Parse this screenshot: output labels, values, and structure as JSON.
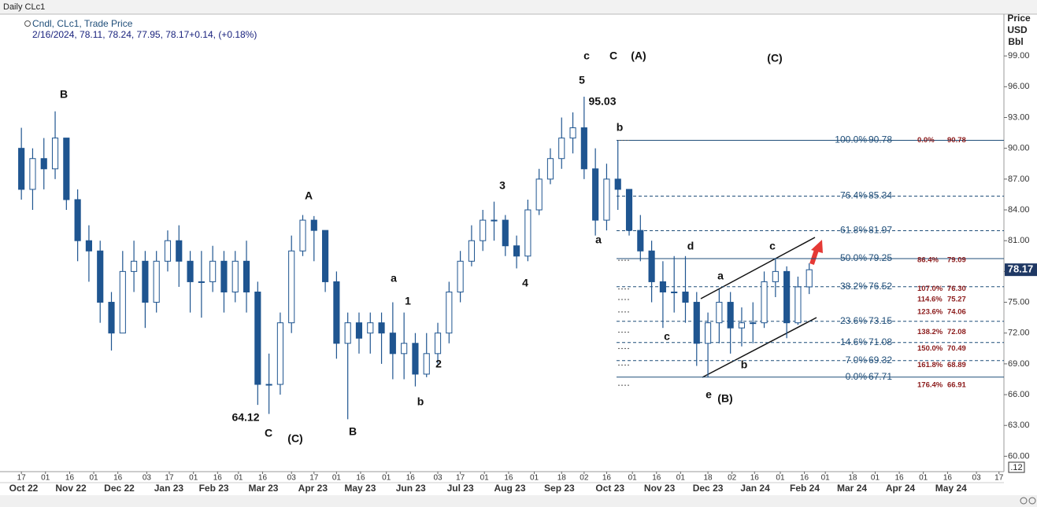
{
  "chart_data": {
    "type": "candlestick",
    "header": "Daily CLc1",
    "legend_title": "Cndl, CLc1, Trade Price",
    "legend_values": "2/16/2024, 78.11, 78.24, 77.95, 78.17+0.14, (+0.18%)",
    "axis_label": [
      "Price",
      "USD",
      "Bbl"
    ],
    "last_price": 78.17,
    "corner_label": ".12",
    "color": "#1f5590",
    "candles": {
      "open": [
        90,
        86,
        89,
        88,
        91,
        85,
        81,
        80,
        75,
        72,
        78,
        79,
        75,
        79,
        81,
        79,
        77,
        77,
        79,
        76,
        79,
        76,
        67,
        67,
        73,
        80,
        83,
        82,
        77,
        71,
        73,
        72,
        73,
        72,
        70,
        71,
        68,
        70,
        72,
        76,
        79,
        81,
        83,
        83,
        80.5,
        79.5,
        84,
        87,
        89,
        91,
        92,
        88,
        83,
        87,
        86,
        82,
        80,
        77,
        76,
        76,
        75,
        71,
        73,
        75,
        72.5,
        73,
        73,
        77,
        78,
        73,
        76.5
      ],
      "high": [
        92,
        90,
        91,
        93.6,
        91,
        86,
        82.5,
        81,
        76,
        80,
        81,
        80,
        80,
        82,
        82.5,
        80,
        80,
        80.5,
        80,
        80,
        81,
        77,
        70,
        74,
        81.5,
        83.5,
        83.4,
        82,
        78,
        74,
        74,
        74,
        74,
        75,
        74,
        72,
        72,
        73,
        77,
        80,
        82.5,
        84,
        84.8,
        83.5,
        81.5,
        85,
        88,
        90,
        93,
        93.5,
        95.03,
        90,
        88.5,
        90.78,
        86,
        83.5,
        81,
        79,
        79.5,
        79.5,
        76,
        74,
        76.3,
        76,
        74.5,
        75,
        78,
        79.3,
        78.5,
        77.5,
        78.8
      ],
      "low": [
        85,
        84,
        86,
        87,
        84,
        79,
        77,
        73,
        70.3,
        72,
        76,
        72.5,
        74,
        78,
        76.5,
        74,
        73.5,
        76,
        74,
        75,
        74,
        65,
        64.12,
        66,
        72,
        79.5,
        79,
        76,
        69.5,
        63.6,
        70,
        70,
        69,
        67.5,
        67.5,
        66.8,
        67.7,
        69,
        71,
        75,
        78.5,
        80,
        81,
        79.5,
        78.3,
        79,
        83.5,
        86.5,
        88,
        89.5,
        87,
        81.5,
        82,
        84,
        81.5,
        79,
        75,
        72.5,
        74,
        73,
        68.8,
        67.71,
        71,
        70,
        70.7,
        71,
        72.5,
        75.5,
        71.5,
        72.8,
        75.8
      ],
      "close": [
        86,
        89,
        88,
        91,
        85,
        81,
        80,
        75,
        72,
        78,
        79,
        75,
        79,
        81,
        79,
        77,
        77,
        79,
        76,
        79,
        76,
        67,
        67,
        73,
        80,
        83,
        82,
        77,
        71,
        73,
        71.5,
        73,
        72,
        70,
        71,
        68,
        70,
        72,
        76,
        79,
        81,
        83,
        83,
        80.5,
        79.5,
        84,
        87,
        89,
        91,
        92,
        88,
        83,
        87,
        86,
        82,
        80,
        77,
        76,
        76,
        75,
        71,
        73,
        75,
        72.5,
        73,
        73,
        77,
        78,
        73,
        76.5,
        78.17
      ]
    },
    "xlim": [
      -1.9,
      87.3
    ],
    "ylim": [
      58.5,
      103.3
    ],
    "yticks": [
      {
        "value": 99,
        "label": "99.00"
      },
      {
        "value": 96,
        "label": "96.00"
      },
      {
        "value": 93,
        "label": "93.00"
      },
      {
        "value": 90,
        "label": "90.00"
      },
      {
        "value": 87,
        "label": "87.00"
      },
      {
        "value": 84,
        "label": "84.00"
      },
      {
        "value": 81,
        "label": "81.00"
      },
      {
        "value": 78,
        "label": "78.00"
      },
      {
        "value": 75,
        "label": "75.00"
      },
      {
        "value": 72,
        "label": "72.00"
      },
      {
        "value": 69,
        "label": "69.00"
      },
      {
        "value": 66,
        "label": "66.00"
      },
      {
        "value": 63,
        "label": "63.00"
      },
      {
        "value": 60,
        "label": "60.00"
      }
    ],
    "xticks": [
      {
        "value": 0,
        "label": "17"
      },
      {
        "value": 2.14,
        "label": "01"
      },
      {
        "value": 4.29,
        "label": "16"
      },
      {
        "value": 6.43,
        "label": "01"
      },
      {
        "value": 8.57,
        "label": "16"
      },
      {
        "value": 11.14,
        "label": "03"
      },
      {
        "value": 13.14,
        "label": "17"
      },
      {
        "value": 15.29,
        "label": "01"
      },
      {
        "value": 17.43,
        "label": "16"
      },
      {
        "value": 19.29,
        "label": "01"
      },
      {
        "value": 21.43,
        "label": "16"
      },
      {
        "value": 24,
        "label": "03"
      },
      {
        "value": 26,
        "label": "17"
      },
      {
        "value": 28,
        "label": "01"
      },
      {
        "value": 30.14,
        "label": "16"
      },
      {
        "value": 32.43,
        "label": "01"
      },
      {
        "value": 34.57,
        "label": "16"
      },
      {
        "value": 37,
        "label": "03"
      },
      {
        "value": 39,
        "label": "17"
      },
      {
        "value": 41.14,
        "label": "01"
      },
      {
        "value": 43.29,
        "label": "16"
      },
      {
        "value": 45.57,
        "label": "01"
      },
      {
        "value": 48,
        "label": "18"
      },
      {
        "value": 50,
        "label": "02"
      },
      {
        "value": 52,
        "label": "16"
      },
      {
        "value": 54.29,
        "label": "01"
      },
      {
        "value": 56.43,
        "label": "16"
      },
      {
        "value": 58.57,
        "label": "01"
      },
      {
        "value": 61,
        "label": "18"
      },
      {
        "value": 63.14,
        "label": "02"
      },
      {
        "value": 65.14,
        "label": "16"
      },
      {
        "value": 67.43,
        "label": "01"
      },
      {
        "value": 69.57,
        "label": "16"
      },
      {
        "value": 71.43,
        "label": "01"
      },
      {
        "value": 73.86,
        "label": "18"
      },
      {
        "value": 75.86,
        "label": "01"
      },
      {
        "value": 78,
        "label": "16"
      },
      {
        "value": 80.14,
        "label": "01"
      },
      {
        "value": 82.29,
        "label": "16"
      },
      {
        "value": 84.86,
        "label": "03"
      },
      {
        "value": 86.86,
        "label": "17"
      }
    ],
    "month_labels": [
      {
        "value": 0.2,
        "label": "Oct 22"
      },
      {
        "value": 4.4,
        "label": "Nov 22"
      },
      {
        "value": 8.7,
        "label": "Dec 22"
      },
      {
        "value": 13.1,
        "label": "Jan 23"
      },
      {
        "value": 17.1,
        "label": "Feb 23"
      },
      {
        "value": 21.5,
        "label": "Mar 23"
      },
      {
        "value": 25.9,
        "label": "Apr 23"
      },
      {
        "value": 30.1,
        "label": "May 23"
      },
      {
        "value": 34.6,
        "label": "Jun 23"
      },
      {
        "value": 39.0,
        "label": "Jul 23"
      },
      {
        "value": 43.4,
        "label": "Aug 23"
      },
      {
        "value": 47.8,
        "label": "Sep 23"
      },
      {
        "value": 52.3,
        "label": "Oct 23"
      },
      {
        "value": 56.7,
        "label": "Nov 23"
      },
      {
        "value": 61.0,
        "label": "Dec 23"
      },
      {
        "value": 65.2,
        "label": "Jan 24"
      },
      {
        "value": 69.6,
        "label": "Feb 24"
      },
      {
        "value": 73.8,
        "label": "Mar 24"
      },
      {
        "value": 78.1,
        "label": "Apr 24"
      },
      {
        "value": 82.6,
        "label": "May 24"
      }
    ],
    "fib_levels": [
      {
        "ratio": "100.0%",
        "price": 90.78,
        "solid": true
      },
      {
        "ratio": "76.4%",
        "price": 85.34,
        "solid": false
      },
      {
        "ratio": "61.8%",
        "price": 81.97,
        "solid": false
      },
      {
        "ratio": "50.0%",
        "price": 79.25,
        "solid": true
      },
      {
        "ratio": "38.2%",
        "price": 76.52,
        "solid": false
      },
      {
        "ratio": "23.6%",
        "price": 73.15,
        "solid": false
      },
      {
        "ratio": "14.6%",
        "price": 71.08,
        "solid": false
      },
      {
        "ratio": "7.0%",
        "price": 69.32,
        "solid": false
      },
      {
        "ratio": "0.0%",
        "price": 67.71,
        "solid": true
      }
    ],
    "extensions": [
      {
        "ratio": "0.0%",
        "price": {
          "value": 90.78,
          "label": "90.78"
        }
      },
      {
        "ratio": "86.4%",
        "price": {
          "value": 79.09,
          "label": "79.09"
        }
      },
      {
        "ratio": "107.0%",
        "price": {
          "value": 76.3,
          "label": "76.30"
        }
      },
      {
        "ratio": "114.6%",
        "price": {
          "value": 75.27,
          "label": "75.27"
        }
      },
      {
        "ratio": "123.6%",
        "price": {
          "value": 74.06,
          "label": "74.06"
        }
      },
      {
        "ratio": "138.2%",
        "price": {
          "value": 72.08,
          "label": "72.08"
        }
      },
      {
        "ratio": "150.0%",
        "price": {
          "value": 70.49,
          "label": "70.49"
        }
      },
      {
        "ratio": "161.8%",
        "price": {
          "value": 68.89,
          "label": "68.89"
        }
      },
      {
        "ratio": "176.4%",
        "price": {
          "value": 66.91,
          "label": "66.91"
        }
      }
    ],
    "annotations": [
      "B",
      "A",
      "64.12",
      "C",
      "(C)",
      "B",
      "a",
      "1",
      "2",
      "b",
      "3",
      "4",
      "5",
      "95.03",
      "c",
      "C",
      "(A)",
      "(C)",
      "b",
      "a",
      "c",
      "d",
      "a",
      "c",
      "b",
      "e",
      "(B)"
    ]
  }
}
